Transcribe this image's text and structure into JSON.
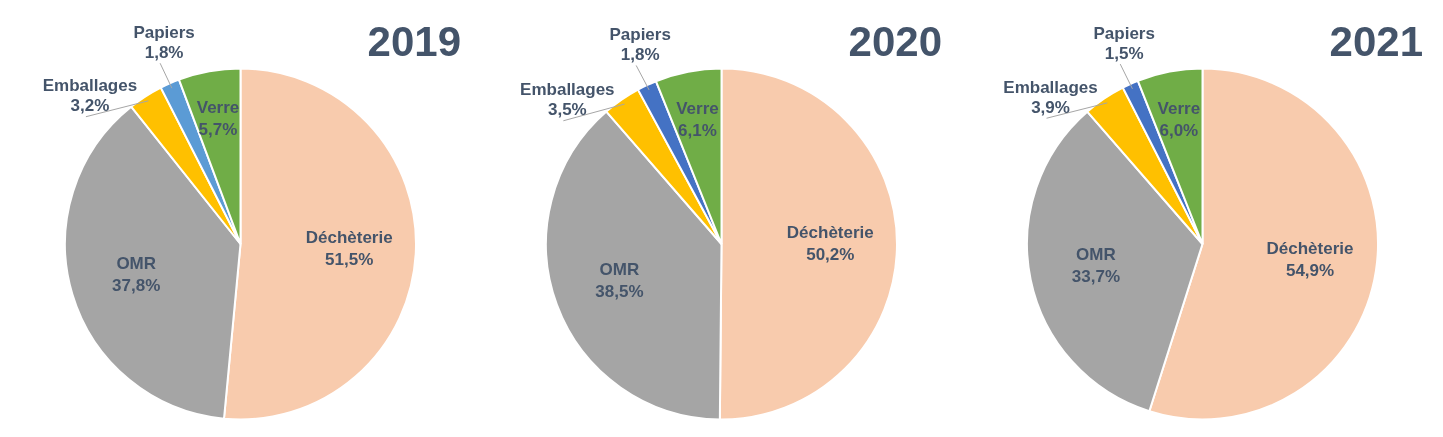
{
  "chart_data": [
    {
      "type": "pie",
      "title": "2019",
      "categories": [
        "Déchèterie",
        "OMR",
        "Emballages",
        "Papiers",
        "Verre"
      ],
      "values": [
        51.5,
        37.8,
        3.2,
        1.8,
        5.7
      ],
      "value_labels": [
        "51,5%",
        "37,8%",
        "3,2%",
        "1,8%",
        "5,7%"
      ],
      "colors": [
        "#f8cbad",
        "#a5a5a5",
        "#ffc000",
        "#5b9bd5",
        "#70ad47"
      ]
    },
    {
      "type": "pie",
      "title": "2020",
      "categories": [
        "Déchèterie",
        "OMR",
        "Emballages",
        "Papiers",
        "Verre"
      ],
      "values": [
        50.2,
        38.5,
        3.5,
        1.8,
        6.1
      ],
      "value_labels": [
        "50,2%",
        "38,5%",
        "3,5%",
        "1,8%",
        "6,1%"
      ],
      "colors": [
        "#f8cbad",
        "#a5a5a5",
        "#ffc000",
        "#4472c4",
        "#70ad47"
      ]
    },
    {
      "type": "pie",
      "title": "2021",
      "categories": [
        "Déchèterie",
        "OMR",
        "Emballages",
        "Papiers",
        "Verre"
      ],
      "values": [
        54.9,
        33.7,
        3.9,
        1.5,
        6.0
      ],
      "value_labels": [
        "54,9%",
        "33,7%",
        "3,9%",
        "1,5%",
        "6,0%"
      ],
      "colors": [
        "#f8cbad",
        "#a5a5a5",
        "#ffc000",
        "#4472c4",
        "#70ad47"
      ]
    }
  ]
}
